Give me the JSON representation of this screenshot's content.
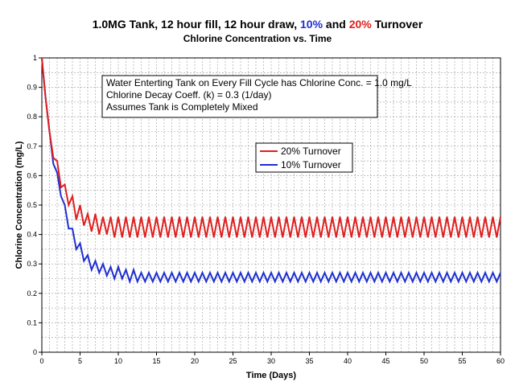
{
  "title": {
    "part1": "1.0MG Tank, 12 hour fill, 12 hour draw, ",
    "pct10": "10%",
    "and": " and ",
    "pct20": "20%",
    "part2": " Turnover",
    "subtitle": "Chlorine Concentration vs. Time"
  },
  "colors": {
    "series_10": "#1f2fd0",
    "series_20": "#e01f1f",
    "grid": "#9a9a9a"
  },
  "annotation": [
    "Water Enterting Tank on Every Fill Cycle has Chlorine Conc. = 1.0 mg/L",
    "Chlorine Decay Coeff. (k) = 0.3 (1/day)",
    "Assumes Tank is Completely Mixed"
  ],
  "chart_data": {
    "type": "line",
    "title": "1.0MG Tank, 12 hour fill, 12 hour draw, 10% and 20% Turnover",
    "subtitle": "Chlorine Concentration vs. Time",
    "xlabel": "Time (Days)",
    "ylabel": "Chlorine Concentration (mg/L)",
    "xlim": [
      0,
      60
    ],
    "ylim": [
      0,
      1
    ],
    "xticks": [
      "0",
      "5",
      "10",
      "15",
      "20",
      "25",
      "30",
      "35",
      "40",
      "45",
      "50",
      "55",
      "60"
    ],
    "yticks": [
      "0",
      "0.1",
      "0.2",
      "0.3",
      "0.4",
      "0.5",
      "0.6",
      "0.7",
      "0.8",
      "0.9",
      "1"
    ],
    "grid": true,
    "legend_position": "center-right",
    "series": [
      {
        "name": "20% Turnover",
        "color": "#e01f1f",
        "x": [
          0,
          0.5,
          1,
          1.5,
          2,
          2.5,
          3,
          3.5,
          4,
          4.5,
          5,
          5.5,
          6,
          6.5,
          7,
          7.5,
          8,
          8.5,
          9,
          9.5,
          10,
          10.5,
          11,
          11.5,
          12,
          12.5,
          13,
          13.5,
          14,
          14.5,
          15,
          15.5,
          16,
          16.5,
          17,
          17.5,
          18,
          18.5,
          19,
          19.5,
          20,
          20.5,
          21,
          21.5,
          22,
          22.5,
          23,
          23.5,
          24,
          24.5,
          25,
          25.5,
          26,
          26.5,
          27,
          27.5,
          28,
          28.5,
          29,
          29.5,
          30,
          30.5,
          31,
          31.5,
          32,
          32.5,
          33,
          33.5,
          34,
          34.5,
          35,
          35.5,
          36,
          36.5,
          37,
          37.5,
          38,
          38.5,
          39,
          39.5,
          40,
          40.5,
          41,
          41.5,
          42,
          42.5,
          43,
          43.5,
          44,
          44.5,
          45,
          45.5,
          46,
          46.5,
          47,
          47.5,
          48,
          48.5,
          49,
          49.5,
          50,
          50.5,
          51,
          51.5,
          52,
          52.5,
          53,
          53.5,
          54,
          54.5,
          55,
          55.5,
          56,
          56.5,
          57,
          57.5,
          58,
          58.5,
          59,
          59.5,
          60
        ],
        "y": [
          1.0,
          0.86,
          0.75,
          0.66,
          0.65,
          0.56,
          0.57,
          0.5,
          0.53,
          0.45,
          0.5,
          0.43,
          0.47,
          0.41,
          0.47,
          0.4,
          0.46,
          0.4,
          0.46,
          0.39,
          0.46,
          0.39,
          0.46,
          0.39,
          0.46,
          0.39,
          0.46,
          0.39,
          0.46,
          0.39,
          0.46,
          0.39,
          0.46,
          0.39,
          0.46,
          0.39,
          0.46,
          0.39,
          0.46,
          0.39,
          0.46,
          0.39,
          0.46,
          0.39,
          0.46,
          0.39,
          0.46,
          0.39,
          0.46,
          0.39,
          0.46,
          0.39,
          0.46,
          0.39,
          0.46,
          0.39,
          0.46,
          0.39,
          0.46,
          0.39,
          0.46,
          0.39,
          0.46,
          0.39,
          0.46,
          0.39,
          0.46,
          0.39,
          0.46,
          0.39,
          0.46,
          0.39,
          0.46,
          0.39,
          0.46,
          0.39,
          0.46,
          0.39,
          0.46,
          0.39,
          0.46,
          0.39,
          0.46,
          0.39,
          0.46,
          0.39,
          0.46,
          0.39,
          0.46,
          0.39,
          0.46,
          0.39,
          0.46,
          0.39,
          0.46,
          0.39,
          0.46,
          0.39,
          0.46,
          0.39,
          0.46,
          0.39,
          0.46,
          0.39,
          0.46,
          0.39,
          0.46,
          0.39,
          0.46,
          0.39,
          0.46,
          0.39,
          0.46,
          0.39,
          0.46,
          0.39,
          0.46,
          0.39,
          0.46,
          0.39,
          0.46
        ]
      },
      {
        "name": "10% Turnover",
        "color": "#1f2fd0",
        "x": [
          0,
          0.5,
          1,
          1.5,
          2,
          2.5,
          3,
          3.5,
          4,
          4.5,
          5,
          5.5,
          6,
          6.5,
          7,
          7.5,
          8,
          8.5,
          9,
          9.5,
          10,
          10.5,
          11,
          11.5,
          12,
          12.5,
          13,
          13.5,
          14,
          14.5,
          15,
          15.5,
          16,
          16.5,
          17,
          17.5,
          18,
          18.5,
          19,
          19.5,
          20,
          20.5,
          21,
          21.5,
          22,
          22.5,
          23,
          23.5,
          24,
          24.5,
          25,
          25.5,
          26,
          26.5,
          27,
          27.5,
          28,
          28.5,
          29,
          29.5,
          30,
          30.5,
          31,
          31.5,
          32,
          32.5,
          33,
          33.5,
          34,
          34.5,
          35,
          35.5,
          36,
          36.5,
          37,
          37.5,
          38,
          38.5,
          39,
          39.5,
          40,
          40.5,
          41,
          41.5,
          42,
          42.5,
          43,
          43.5,
          44,
          44.5,
          45,
          45.5,
          46,
          46.5,
          47,
          47.5,
          48,
          48.5,
          49,
          49.5,
          50,
          50.5,
          51,
          51.5,
          52,
          52.5,
          53,
          53.5,
          54,
          54.5,
          55,
          55.5,
          56,
          56.5,
          57,
          57.5,
          58,
          58.5,
          59,
          59.5,
          60
        ],
        "y": [
          1.0,
          0.86,
          0.75,
          0.64,
          0.61,
          0.53,
          0.5,
          0.42,
          0.42,
          0.35,
          0.37,
          0.31,
          0.33,
          0.28,
          0.31,
          0.27,
          0.3,
          0.26,
          0.29,
          0.25,
          0.29,
          0.25,
          0.28,
          0.24,
          0.28,
          0.24,
          0.27,
          0.24,
          0.27,
          0.24,
          0.27,
          0.24,
          0.27,
          0.24,
          0.27,
          0.24,
          0.27,
          0.24,
          0.27,
          0.24,
          0.27,
          0.24,
          0.27,
          0.24,
          0.27,
          0.24,
          0.27,
          0.24,
          0.27,
          0.24,
          0.27,
          0.24,
          0.27,
          0.24,
          0.27,
          0.24,
          0.27,
          0.24,
          0.27,
          0.24,
          0.27,
          0.24,
          0.27,
          0.24,
          0.27,
          0.24,
          0.27,
          0.24,
          0.27,
          0.24,
          0.27,
          0.24,
          0.27,
          0.24,
          0.27,
          0.24,
          0.27,
          0.24,
          0.27,
          0.24,
          0.27,
          0.24,
          0.27,
          0.24,
          0.27,
          0.24,
          0.27,
          0.24,
          0.27,
          0.24,
          0.27,
          0.24,
          0.27,
          0.24,
          0.27,
          0.24,
          0.27,
          0.24,
          0.27,
          0.24,
          0.27,
          0.24,
          0.27,
          0.24,
          0.27,
          0.24,
          0.27,
          0.24,
          0.27,
          0.24,
          0.27,
          0.24,
          0.27,
          0.24,
          0.27,
          0.24,
          0.27,
          0.24,
          0.27,
          0.24,
          0.27
        ]
      }
    ]
  }
}
